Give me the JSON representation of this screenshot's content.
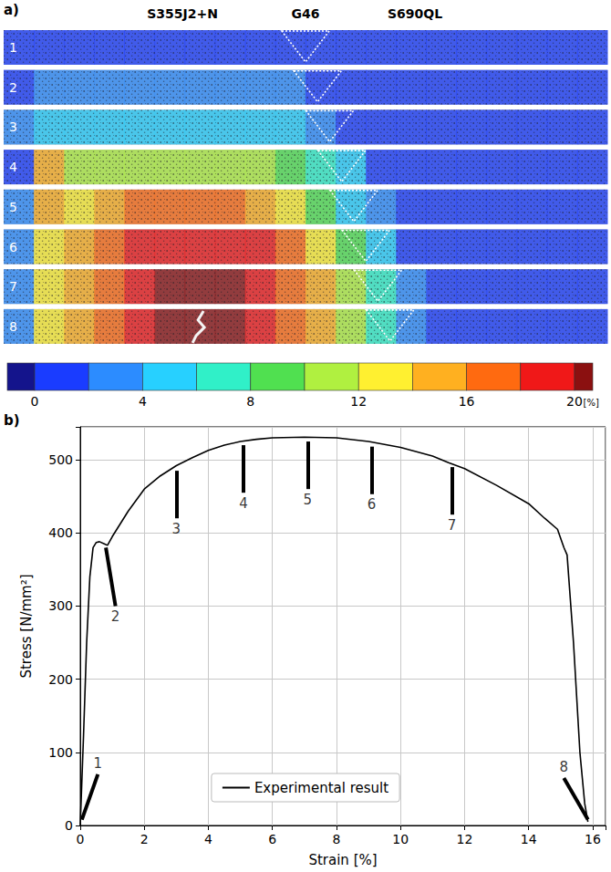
{
  "panel_a": {
    "label": "a)",
    "materials": [
      "S355J2+N",
      "G46",
      "S690QL"
    ],
    "stages": [
      {
        "label": "1",
        "strain": [
          0.5,
          0.5,
          0.5,
          0.5,
          0.5,
          0.5,
          0.5,
          0.5,
          0.5,
          0.5,
          0.5,
          0.5,
          0.5,
          0.5,
          0.5,
          0.5,
          0.5,
          0.5,
          0.5,
          0.5
        ]
      },
      {
        "label": "2",
        "strain": [
          1,
          2.5,
          3,
          3,
          3,
          3,
          3,
          3,
          3,
          2.5,
          1.5,
          0.5,
          0.5,
          0.5,
          0.5,
          0.5,
          0.5,
          0.5,
          0.5,
          0.5
        ]
      },
      {
        "label": "3",
        "strain": [
          2.5,
          4.5,
          5,
          5,
          5,
          5,
          5,
          5,
          5,
          4.5,
          3,
          1.5,
          0.5,
          0.5,
          0.5,
          0.5,
          0.5,
          0.5,
          0.5,
          0.5
        ]
      },
      {
        "label": "4",
        "strain": [
          1,
          15,
          10.5,
          10.5,
          10.5,
          10.5,
          10.5,
          10.5,
          10,
          9,
          7,
          4,
          1.5,
          0.5,
          0.5,
          0.5,
          0.5,
          0.5,
          0.5,
          0.5
        ]
      },
      {
        "label": "5",
        "strain": [
          2,
          14,
          13,
          15,
          17,
          17,
          17,
          16,
          15,
          13,
          9,
          5,
          2,
          0.5,
          0.5,
          0.5,
          0.5,
          0.5,
          0.5,
          0.5
        ]
      },
      {
        "label": "6",
        "strain": [
          3,
          13,
          14,
          16,
          19,
          19,
          19,
          19,
          19,
          17,
          13,
          9,
          5,
          1.5,
          0.5,
          0.5,
          0.5,
          0.5,
          0.5,
          0.5
        ]
      },
      {
        "label": "7",
        "strain": [
          3,
          13,
          14,
          16,
          19,
          21,
          21,
          21,
          19,
          17,
          14,
          10,
          6,
          2.5,
          0.5,
          0.5,
          0.5,
          0.5,
          0.5,
          0.5
        ]
      },
      {
        "label": "8",
        "strain": [
          3,
          13,
          14,
          16,
          19,
          21,
          21,
          21,
          19,
          17,
          14,
          11,
          7,
          3,
          1,
          0.5,
          0.5,
          0.5,
          0.5,
          0.5
        ]
      }
    ],
    "colorbar": {
      "range": [
        0,
        20
      ],
      "ticks": [
        0,
        4,
        8,
        12,
        16,
        20
      ],
      "unit": "[%]"
    }
  },
  "chart_data": {
    "type": "line",
    "label": "b)",
    "xlabel": "Strain [%]",
    "ylabel": "Stress [N/mm²]",
    "x": [
      0,
      0.1,
      0.2,
      0.3,
      0.4,
      0.5,
      0.6,
      0.75,
      0.85,
      1,
      1.5,
      2,
      2.5,
      3,
      3.5,
      4,
      4.5,
      5,
      5.5,
      6,
      7,
      8,
      9,
      10,
      11,
      11.5,
      12,
      13,
      14,
      14.5,
      14.9,
      15.1,
      15.2,
      15.4,
      15.6,
      15.75,
      15.85
    ],
    "series": [
      {
        "name": "Experimental result",
        "color": "#000000",
        "values": [
          0,
          120,
          250,
          340,
          380,
          387,
          388,
          385,
          383,
          395,
          430,
          460,
          478,
          492,
          503,
          513,
          520,
          525,
          528,
          530,
          531,
          530,
          525,
          517,
          505,
          496,
          488,
          465,
          440,
          420,
          405,
          380,
          370,
          250,
          100,
          30,
          5
        ]
      }
    ],
    "xlim": [
      0,
      16.4
    ],
    "xticks": [
      0,
      2,
      4,
      6,
      8,
      10,
      12,
      14,
      16
    ],
    "ylim": [
      0,
      545
    ],
    "yticks": [
      0,
      100,
      200,
      300,
      400,
      500
    ],
    "grid": true,
    "legend": "lower center",
    "annotations": [
      {
        "text": "1",
        "x": 0.05,
        "y": 8,
        "text_x": 0.55,
        "text_y": 70
      },
      {
        "text": "2",
        "x": 0.8,
        "y": 380,
        "text_x": 1.1,
        "text_y": 300
      },
      {
        "text": "3",
        "x": 3,
        "y": 485,
        "text_x": 3,
        "text_y": 420
      },
      {
        "text": "4",
        "x": 5.1,
        "y": 520,
        "text_x": 5.1,
        "text_y": 455
      },
      {
        "text": "5",
        "x": 7.1,
        "y": 525,
        "text_x": 7.1,
        "text_y": 460
      },
      {
        "text": "6",
        "x": 9.1,
        "y": 518,
        "text_x": 9.1,
        "text_y": 453
      },
      {
        "text": "7",
        "x": 11.6,
        "y": 490,
        "text_x": 11.6,
        "text_y": 425
      },
      {
        "text": "8",
        "x": 15.85,
        "y": 8,
        "text_x": 15.1,
        "text_y": 65
      }
    ]
  }
}
